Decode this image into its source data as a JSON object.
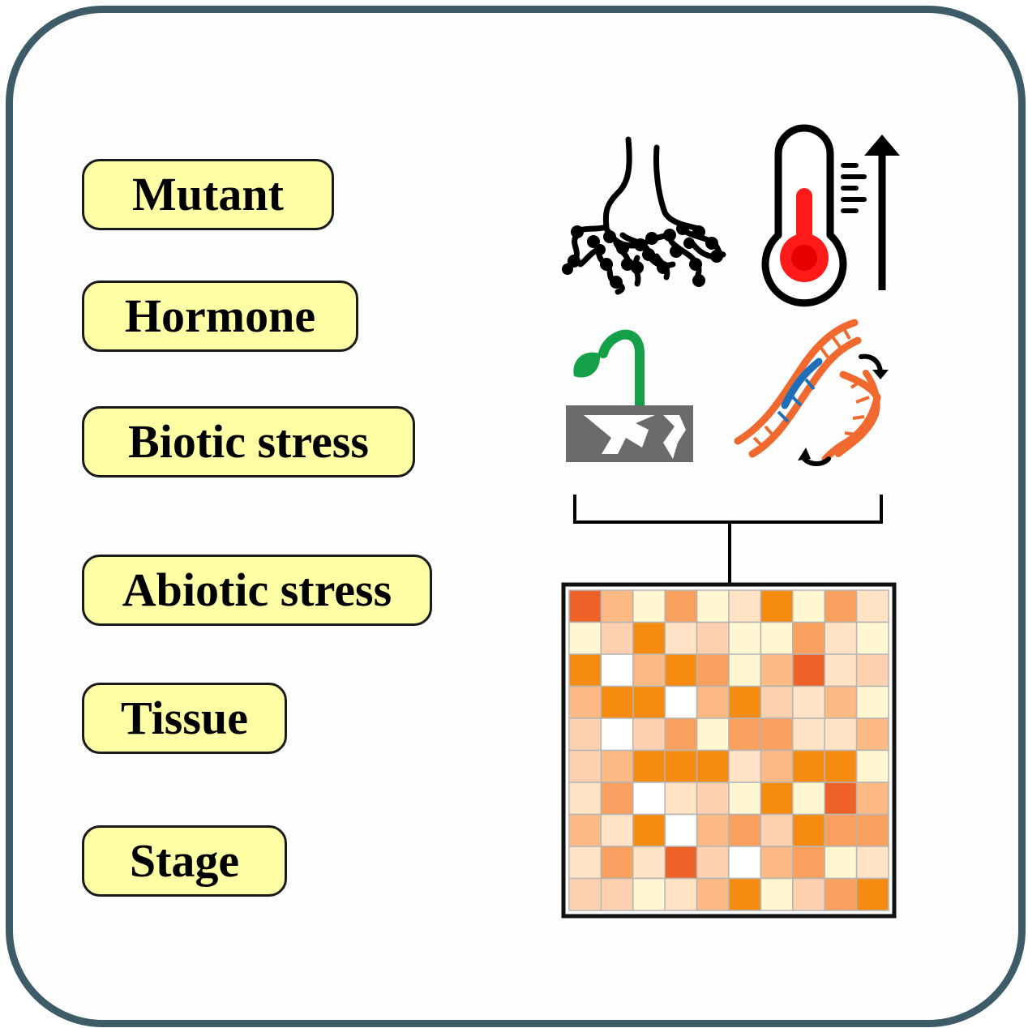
{
  "labels": [
    {
      "text": "Mutant"
    },
    {
      "text": "Hormone"
    },
    {
      "text": "Biotic stress"
    },
    {
      "text": "Abiotic stress"
    },
    {
      "text": "Tissue"
    },
    {
      "text": "Stage"
    }
  ],
  "icons": [
    "roots-icon",
    "thermometer-rising-icon",
    "seedling-cracked-soil-icon",
    "dna-recombination-icon"
  ],
  "heatmap": {
    "palette": [
      "#ffffff",
      "#fff7d1",
      "#ffe3c4",
      "#fdd0b0",
      "#fbb983",
      "#f9a05f",
      "#f68b12",
      "#ee6228"
    ],
    "grid": [
      [
        7,
        4,
        1,
        5,
        1,
        2,
        6,
        1,
        5,
        2
      ],
      [
        1,
        3,
        6,
        2,
        3,
        1,
        1,
        5,
        2,
        1
      ],
      [
        6,
        0,
        4,
        6,
        5,
        1,
        4,
        7,
        2,
        3
      ],
      [
        4,
        6,
        6,
        0,
        4,
        6,
        3,
        2,
        4,
        1
      ],
      [
        3,
        0,
        3,
        5,
        1,
        5,
        5,
        2,
        2,
        4
      ],
      [
        3,
        4,
        6,
        6,
        6,
        2,
        4,
        6,
        6,
        1
      ],
      [
        2,
        5,
        0,
        2,
        3,
        1,
        6,
        1,
        7,
        4
      ],
      [
        4,
        2,
        6,
        0,
        4,
        5,
        3,
        6,
        5,
        5
      ],
      [
        2,
        5,
        2,
        7,
        3,
        0,
        4,
        5,
        1,
        2
      ],
      [
        3,
        3,
        1,
        2,
        4,
        6,
        1,
        3,
        5,
        6
      ]
    ]
  },
  "colors": {
    "frame": "#3d5c68",
    "label_fill": "#ffffa6",
    "thermometer_red": "#ff1a1a",
    "seedling_green": "#13a048",
    "soil_gray": "#6b6b6b",
    "dna_orange": "#f06a30",
    "dna_blue": "#1f6fb8"
  }
}
